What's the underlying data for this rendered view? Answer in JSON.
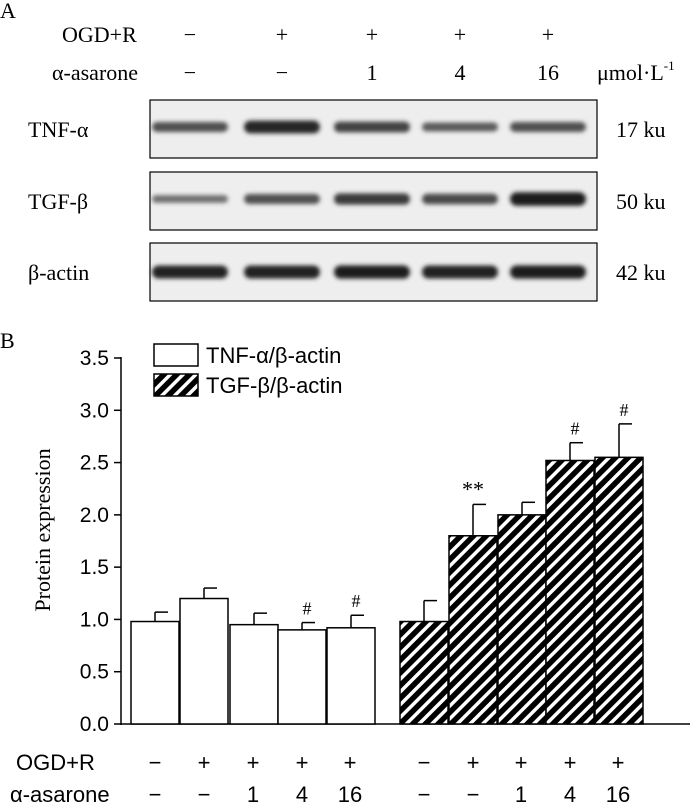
{
  "panelA": {
    "label": "A",
    "row_labels": [
      "OGD+R",
      "α-asarone"
    ],
    "ogd_signs": [
      "−",
      "+",
      "+",
      "+",
      "+"
    ],
    "asarone_doses": [
      "−",
      "−",
      "1",
      "4",
      "16"
    ],
    "unit_main": "μmol·L",
    "unit_sup": "-1",
    "blots": [
      {
        "label": "TNF-α",
        "size": "17 ku",
        "intensity": [
          0.55,
          0.85,
          0.65,
          0.45,
          0.55
        ]
      },
      {
        "label": "TGF-β",
        "size": "50 ku",
        "intensity": [
          0.3,
          0.55,
          0.7,
          0.6,
          0.95
        ]
      },
      {
        "label": "β-actin",
        "size": "42 ku",
        "intensity": [
          0.9,
          0.88,
          0.92,
          0.9,
          0.92
        ]
      }
    ]
  },
  "panelB": {
    "label": "B",
    "ogd_label": "OGD+R",
    "asarone_label": "α-asarone",
    "ogd_signs": [
      "−",
      "+",
      "+",
      "+",
      "+",
      "−",
      "+",
      "+",
      "+",
      "+"
    ],
    "asarone_doses": [
      "−",
      "−",
      "1",
      "4",
      "16",
      "−",
      "−",
      "1",
      "4",
      "16"
    ]
  },
  "chart_data": {
    "type": "bar",
    "ylabel": "Protein expression",
    "ylim": [
      0,
      3.5
    ],
    "yticks": [
      "0.0",
      "0.5",
      "1.0",
      "1.5",
      "2.0",
      "2.5",
      "3.0",
      "3.5"
    ],
    "legend_position": "top-left",
    "series": [
      {
        "name": "TNF-α/β-actin",
        "fill": "white",
        "values": [
          0.98,
          1.2,
          0.95,
          0.9,
          0.92
        ],
        "errors": [
          0.09,
          0.1,
          0.11,
          0.07,
          0.12
        ],
        "annotations": [
          "",
          "",
          "",
          "#",
          "#"
        ]
      },
      {
        "name": "TGF-β/β-actin",
        "fill": "hatched",
        "values": [
          0.98,
          1.8,
          2.0,
          2.52,
          2.55
        ],
        "errors": [
          0.2,
          0.3,
          0.12,
          0.17,
          0.32
        ],
        "annotations": [
          "",
          "**",
          "",
          "#",
          "#"
        ]
      }
    ]
  }
}
